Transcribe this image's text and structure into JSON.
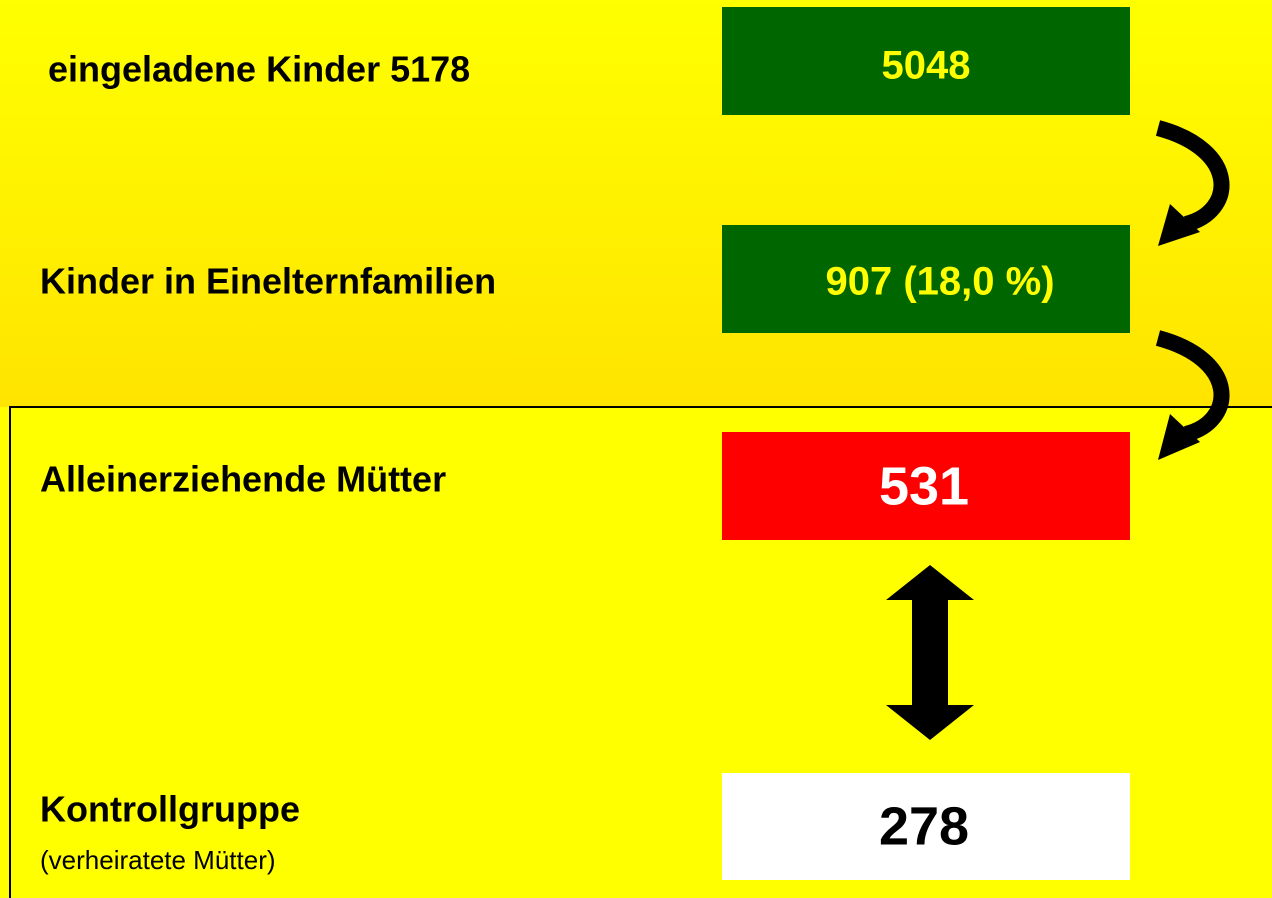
{
  "steps": [
    {
      "label": "eingeladene Kinder 5178",
      "value": "5048"
    },
    {
      "label": "Kinder in Einelternfamilien",
      "value": "907 (18,0 %)"
    },
    {
      "label": "Alleinerziehende Mütter",
      "value": "531"
    },
    {
      "label": "Kontrollgruppe",
      "note": "(verheiratete Mütter)",
      "value": "278"
    }
  ]
}
